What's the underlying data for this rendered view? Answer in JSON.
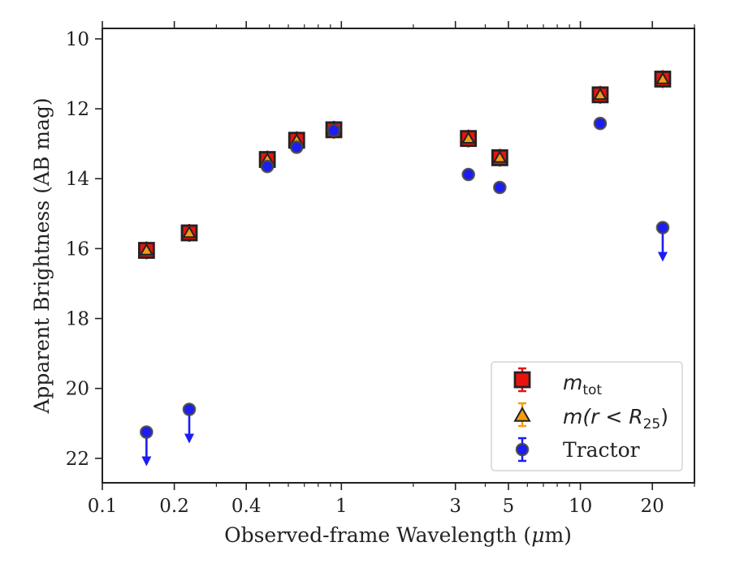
{
  "chart_data": {
    "type": "scatter",
    "title": "",
    "xlabel_pre": "Observed-frame Wavelength (",
    "xlabel_mu": "μ",
    "xlabel_post": "m)",
    "ylabel": "Apparent Brightness (AB mag)",
    "x_scale": "log",
    "xlim": [
      0.1,
      30
    ],
    "ylim": [
      22.7,
      9.7
    ],
    "y_inverted": true,
    "x_ticks": [
      0.1,
      0.2,
      0.4,
      1,
      3,
      5,
      10,
      20
    ],
    "x_tick_labels": [
      "0.1",
      "0.2",
      "0.4",
      "1",
      "3",
      "5",
      "10",
      "20"
    ],
    "y_ticks": [
      10,
      12,
      14,
      16,
      18,
      20,
      22
    ],
    "y_tick_labels": [
      "10",
      "12",
      "14",
      "16",
      "18",
      "20",
      "22"
    ],
    "grid": false,
    "legend_position": "lower-right",
    "series": [
      {
        "name": "m_tot",
        "legend_main": "m",
        "legend_sub": "tot",
        "marker": "square",
        "color": "#e8130f",
        "edge": "#222222",
        "points": [
          {
            "x": 0.153,
            "y": 16.05
          },
          {
            "x": 0.231,
            "y": 15.55
          },
          {
            "x": 0.49,
            "y": 13.45
          },
          {
            "x": 0.65,
            "y": 12.9
          },
          {
            "x": 0.93,
            "y": 12.6
          },
          {
            "x": 3.4,
            "y": 12.85
          },
          {
            "x": 4.6,
            "y": 13.4
          },
          {
            "x": 12.1,
            "y": 11.6
          },
          {
            "x": 22.1,
            "y": 11.15
          }
        ]
      },
      {
        "name": "m(r<R25)",
        "legend_main": "m(r < R",
        "legend_sub": "25",
        "legend_post": ")",
        "marker": "triangle",
        "color": "#f39c12",
        "edge": "#222222",
        "points": [
          {
            "x": 0.153,
            "y": 16.05
          },
          {
            "x": 0.231,
            "y": 15.55
          },
          {
            "x": 0.49,
            "y": 13.45
          },
          {
            "x": 0.65,
            "y": 12.9
          },
          {
            "x": 0.93,
            "y": 12.6
          },
          {
            "x": 3.4,
            "y": 12.85
          },
          {
            "x": 4.6,
            "y": 13.4
          },
          {
            "x": 12.1,
            "y": 11.6
          },
          {
            "x": 22.1,
            "y": 11.15
          }
        ]
      },
      {
        "name": "Tractor",
        "legend_main": "Tractor",
        "marker": "circle",
        "color": "#1c1cf5",
        "edge": "#444444",
        "points": [
          {
            "x": 0.153,
            "y": 21.25,
            "upper_limit": true
          },
          {
            "x": 0.231,
            "y": 20.6,
            "upper_limit": true
          },
          {
            "x": 0.49,
            "y": 13.65
          },
          {
            "x": 0.65,
            "y": 13.1
          },
          {
            "x": 0.93,
            "y": 12.62
          },
          {
            "x": 3.4,
            "y": 13.88
          },
          {
            "x": 4.6,
            "y": 14.25
          },
          {
            "x": 12.1,
            "y": 12.42
          },
          {
            "x": 22.1,
            "y": 15.4,
            "upper_limit": true
          }
        ]
      }
    ]
  }
}
